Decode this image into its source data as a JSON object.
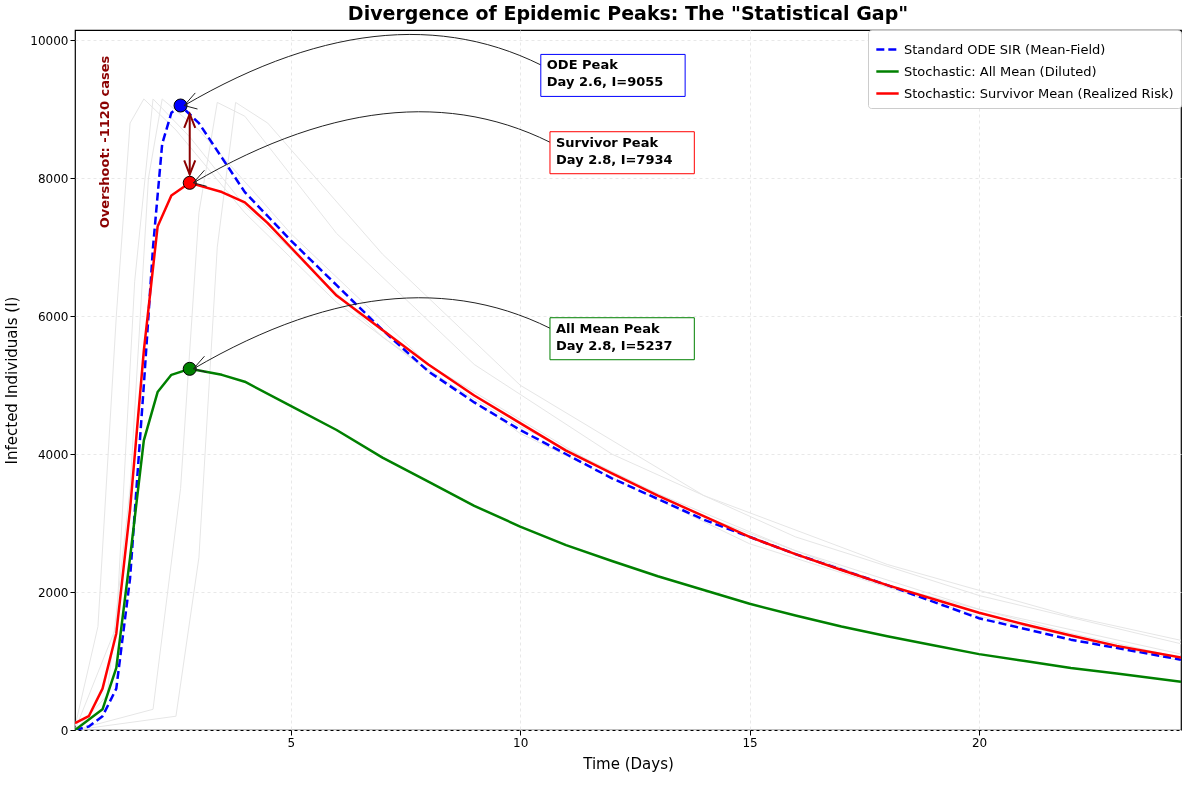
{
  "chart_data": {
    "type": "line",
    "title": "Divergence of Epidemic Peaks: The \"Statistical Gap\"",
    "xlabel": "Time (Days)",
    "ylabel": "Infected Individuals (I)",
    "xlim": [
      0.3,
      24.4
    ],
    "ylim": [
      0,
      10150
    ],
    "xticks": [
      5,
      10,
      15,
      20
    ],
    "yticks": [
      0,
      2000,
      4000,
      6000,
      8000,
      10000
    ],
    "grid": true,
    "legend": "top right",
    "series": [
      {
        "color": "#e6e6e6",
        "x": [
          0.3,
          0.8,
          1.2,
          1.5,
          1.8,
          2.5,
          4,
          6,
          8,
          10,
          14,
          18,
          22,
          24.4
        ],
        "values": [
          50,
          1500,
          6000,
          8800,
          9150,
          8700,
          7500,
          6200,
          5200,
          4400,
          3100,
          2100,
          1400,
          1050
        ]
      },
      {
        "color": "#e6e6e6",
        "x": [
          0.3,
          1.0,
          1.5,
          1.9,
          2.2,
          3,
          5,
          8,
          12,
          16,
          20,
          24.4
        ],
        "values": [
          0,
          500,
          3500,
          8000,
          9150,
          8700,
          7200,
          5300,
          3700,
          2600,
          1750,
          1100
        ]
      },
      {
        "color": "#e6e6e6",
        "x": [
          0.3,
          2.0,
          2.6,
          3.0,
          3.4,
          4,
          6,
          9,
          12,
          16,
          20,
          24.4
        ],
        "values": [
          0,
          300,
          3500,
          7500,
          9100,
          8900,
          7200,
          5300,
          4000,
          2800,
          1950,
          1250
        ]
      },
      {
        "color": "#e6e6e6",
        "x": [
          0.3,
          2.5,
          3.0,
          3.4,
          3.8,
          4.5,
          7,
          10,
          14,
          18,
          22,
          24.4
        ],
        "values": [
          0,
          200,
          2500,
          7000,
          9100,
          8800,
          6900,
          5000,
          3400,
          2400,
          1650,
          1300
        ]
      },
      {
        "color": "#e6e6e6",
        "x": [
          0.3,
          1.2,
          1.6,
          2.0,
          2.8,
          4,
          7,
          10,
          15,
          20,
          24.4
        ],
        "values": [
          0,
          1500,
          6500,
          9150,
          8600,
          7600,
          5700,
          4300,
          2700,
          1650,
          1000
        ]
      },
      {
        "name": "Standard ODE SIR (Mean-Field)",
        "color": "#0000ff",
        "line_style": "dashed",
        "x": [
          0.3,
          0.6,
          0.9,
          1.2,
          1.5,
          1.8,
          2.0,
          2.2,
          2.4,
          2.6,
          3.0,
          3.5,
          4,
          5,
          6,
          7,
          8,
          9,
          10,
          12,
          14,
          16,
          18,
          20,
          22,
          24.4
        ],
        "values": [
          0,
          50,
          200,
          600,
          2200,
          5000,
          7000,
          8500,
          8950,
          9055,
          8800,
          8300,
          7800,
          7100,
          6450,
          5800,
          5200,
          4750,
          4350,
          3650,
          3050,
          2550,
          2100,
          1620,
          1310,
          1020
        ]
      },
      {
        "name": "Stochastic: All Mean (Diluted)",
        "color": "#008000",
        "line_style": "solid",
        "x": [
          0.3,
          0.9,
          1.2,
          1.5,
          1.8,
          2.1,
          2.4,
          2.8,
          3.5,
          4,
          5,
          6,
          7,
          8,
          9,
          10,
          11,
          12,
          13,
          14,
          15,
          16,
          17,
          18,
          19,
          20,
          21,
          22,
          23,
          24.4
        ],
        "values": [
          0,
          300,
          900,
          2500,
          4200,
          4900,
          5150,
          5237,
          5150,
          5050,
          4700,
          4350,
          3950,
          3600,
          3250,
          2950,
          2680,
          2450,
          2230,
          2030,
          1830,
          1660,
          1500,
          1360,
          1230,
          1100,
          1000,
          900,
          820,
          700
        ]
      },
      {
        "name": "Stochastic: Survivor Mean (Realized Risk)",
        "color": "#ff0000",
        "line_style": "solid",
        "x": [
          0.3,
          0.6,
          0.9,
          1.2,
          1.5,
          1.8,
          2.1,
          2.4,
          2.8,
          3.5,
          4,
          4.5,
          5,
          6,
          7,
          8,
          9,
          10,
          11,
          12,
          13,
          14,
          15,
          16,
          17,
          18,
          19,
          20,
          21,
          22,
          23,
          24.4
        ],
        "values": [
          100,
          200,
          600,
          1400,
          3200,
          5500,
          7300,
          7750,
          7934,
          7800,
          7650,
          7350,
          7000,
          6300,
          5800,
          5300,
          4850,
          4450,
          4050,
          3720,
          3400,
          3100,
          2800,
          2550,
          2320,
          2100,
          1900,
          1700,
          1530,
          1370,
          1220,
          1050
        ]
      },
      {
        "type": "scatter",
        "marker": "circle",
        "x": [
          2.6,
          2.8,
          2.8
        ],
        "values": [
          9055,
          7934,
          5237
        ],
        "colors": [
          "#0000ff",
          "#ff0000",
          "#008000"
        ]
      }
    ],
    "annotations": [
      "ODE Peak\nDay 2.6, I=9055",
      "Survivor Peak\nDay 2.8, I=7934",
      "All Mean Peak\nDay 2.8, I=5237",
      "Overshoot: -1120 cases"
    ]
  }
}
